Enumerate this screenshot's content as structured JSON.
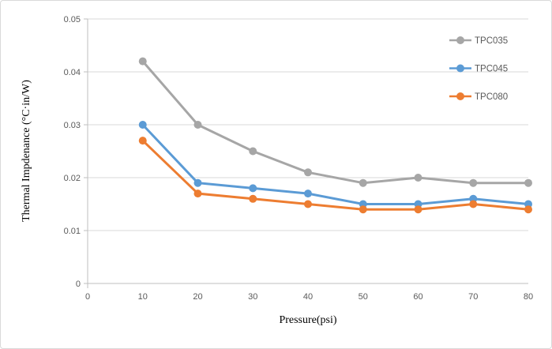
{
  "chart_data": {
    "type": "line",
    "title": "",
    "x": [
      10,
      20,
      30,
      40,
      50,
      60,
      70,
      80
    ],
    "series": [
      {
        "name": "TPC035",
        "color": "#a6a6a6",
        "values": [
          0.042,
          0.03,
          0.025,
          0.021,
          0.019,
          0.02,
          0.019,
          0.019
        ]
      },
      {
        "name": "TPC045",
        "color": "#5b9bd5",
        "values": [
          0.03,
          0.019,
          0.018,
          0.017,
          0.015,
          0.015,
          0.016,
          0.015
        ]
      },
      {
        "name": "TPC080",
        "color": "#ed7d31",
        "values": [
          0.027,
          0.017,
          0.016,
          0.015,
          0.014,
          0.014,
          0.015,
          0.014
        ]
      }
    ],
    "xlabel": "Pressure(psi)",
    "ylabel": "Thermal Impdenance (°C·in/W)",
    "xlim": [
      0,
      80
    ],
    "ylim": [
      0,
      0.05
    ],
    "x_tick_labels": [
      "0",
      "10",
      "20",
      "30",
      "40",
      "50",
      "60",
      "70",
      "80"
    ],
    "y_tick_labels": [
      "0",
      "0.01",
      "0.02",
      "0.03",
      "0.04",
      "0.05"
    ],
    "grid": "horizontal-only",
    "legend_position": "top-right"
  },
  "styles": {
    "grid_color": "#d9d9d9",
    "axis_color": "#bfbfbf",
    "tick_text_color": "#595959",
    "legend_text_color": "#595959",
    "frame_border_color": "#d9d9d9",
    "background": "#ffffff"
  }
}
